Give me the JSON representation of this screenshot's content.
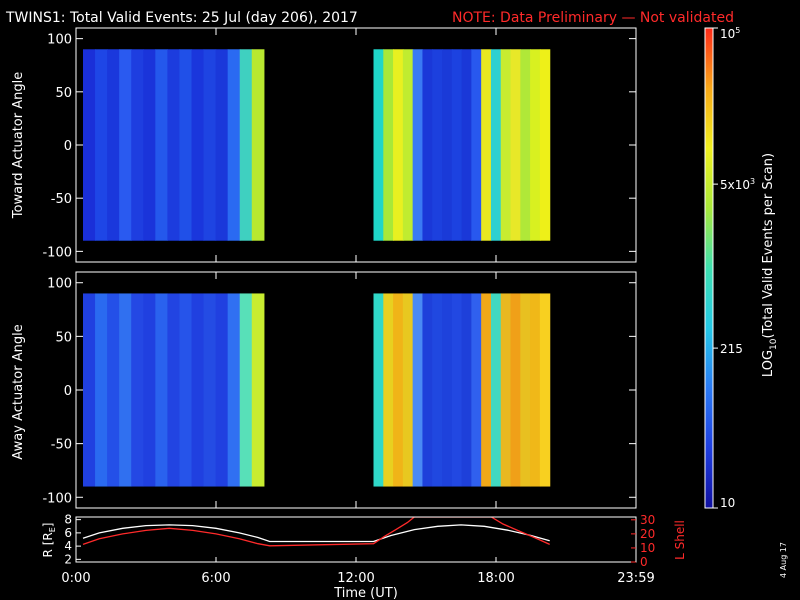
{
  "header": {
    "title": "TWINS1: Total Valid Events: 25 Jul (day 206), 2017",
    "note": "NOTE: Data Preliminary — Not validated"
  },
  "footer": {
    "date": "4 Aug 17"
  },
  "colors": {
    "background": "#000000",
    "note": "#ff2a2a",
    "r_line": "#ffffff",
    "l_shell_line": "#ff2a2a"
  },
  "chart_data": [
    {
      "type": "heatmap",
      "ylabel": "Toward Actuator Angle",
      "ylim": [
        -110,
        110
      ],
      "yticks": [
        100,
        50,
        0,
        -50,
        -100
      ],
      "xlim": [
        0,
        24
      ],
      "data_intervals_hours": [
        [
          0.3,
          8.05
        ],
        [
          12.75,
          20.3
        ]
      ],
      "band_colors_left": [
        "#1a2fd8",
        "#1e46e6",
        "#1a38dc",
        "#2a5af0",
        "#1e3ee0",
        "#1a34da",
        "#2458ec",
        "#1c3cde",
        "#2050e8",
        "#1a36dc",
        "#1e44e2",
        "#1a38da",
        "#2a6af2",
        "#3fd0c0",
        "#b8e830"
      ],
      "band_colors_right": [
        "#1fd6c8",
        "#a8e838",
        "#e8f020",
        "#c0ec30",
        "#3a7af4",
        "#1a38d8",
        "#1c40de",
        "#1a3ad8",
        "#1c42e0",
        "#1a38d8",
        "#2858ee",
        "#e8e820",
        "#2ed0d0",
        "#c8ec30",
        "#e8e828",
        "#b0e838",
        "#d8f020",
        "#eef018"
      ]
    },
    {
      "type": "heatmap",
      "ylabel": "Away Actuator Angle",
      "ylim": [
        -110,
        110
      ],
      "yticks": [
        100,
        50,
        0,
        -50,
        -100
      ],
      "xlim": [
        0,
        24
      ],
      "data_intervals_hours": [
        [
          0.3,
          8.05
        ],
        [
          12.75,
          20.3
        ]
      ],
      "band_colors_left": [
        "#2040e0",
        "#2a6af0",
        "#2450e8",
        "#3070f0",
        "#2448e4",
        "#2040e0",
        "#2a62ee",
        "#2244e2",
        "#2654ea",
        "#2040e0",
        "#244ce4",
        "#2040e0",
        "#3070f2",
        "#58e0b8",
        "#c8ec30"
      ],
      "band_colors_right": [
        "#30d8c8",
        "#e8d020",
        "#f0b418",
        "#e8c820",
        "#4a8af4",
        "#1e40da",
        "#2048e0",
        "#1e42dc",
        "#2248e2",
        "#1e40da",
        "#3060ee",
        "#f0a818",
        "#40d8c0",
        "#e8b820",
        "#f0a018",
        "#e8c020",
        "#f0b818",
        "#f8d020"
      ]
    },
    {
      "type": "line",
      "xlabel": "Time (UT)",
      "x_ticks": [
        "0:00",
        "6:00",
        "12:00",
        "18:00",
        "23:59"
      ],
      "x_tick_hours": [
        0,
        6,
        12,
        18,
        24
      ],
      "xlim": [
        0,
        24
      ],
      "ylabel_left": "R [RE]",
      "ylabel_left_parts": [
        "R [R",
        "E",
        "]"
      ],
      "ylim_left": [
        1.6,
        8.4
      ],
      "yticks_left": [
        8,
        6,
        4,
        2
      ],
      "ylabel_right": "L Shell",
      "ylim_right": [
        0,
        32
      ],
      "yticks_right": [
        30,
        20,
        10,
        0
      ],
      "series": [
        {
          "name": "R",
          "axis": "left",
          "x": [
            0.3,
            1.0,
            2.0,
            3.0,
            4.0,
            5.0,
            6.0,
            7.0,
            7.8,
            8.3,
            12.75,
            13.5,
            14.5,
            15.5,
            16.5,
            17.5,
            18.5,
            19.5,
            20.3
          ],
          "y": [
            5.2,
            6.0,
            6.7,
            7.1,
            7.2,
            7.1,
            6.7,
            6.0,
            5.3,
            4.7,
            4.7,
            5.6,
            6.5,
            7.0,
            7.2,
            7.0,
            6.4,
            5.6,
            4.8
          ]
        },
        {
          "name": "L Shell",
          "axis": "right",
          "x": [
            0.3,
            1.0,
            2.0,
            3.0,
            4.0,
            5.0,
            6.0,
            7.0,
            7.8,
            8.3,
            12.75,
            13.2,
            13.7,
            14.2,
            14.5,
            17.8,
            18.3,
            19.0,
            19.7,
            20.3
          ],
          "y": [
            12.5,
            16.5,
            20.0,
            22.5,
            24.0,
            22.5,
            20.0,
            16.5,
            13.0,
            11.5,
            13.0,
            18.0,
            23.0,
            28.0,
            32.0,
            32.0,
            27.0,
            22.0,
            17.0,
            12.5
          ]
        }
      ]
    }
  ],
  "colorbar": {
    "label": "LOG10(Total Valid Events per Scan)",
    "label_parts": [
      "LOG",
      "10",
      "(Total Valid Events per Scan)"
    ],
    "tick_values": [
      100000,
      5000,
      215,
      10
    ],
    "tick_labels": [
      {
        "value": 100000,
        "main": "10",
        "sup": "5",
        "sub": ""
      },
      {
        "value": 5000,
        "main": "5x10",
        "sup": "3",
        "sub": ""
      },
      {
        "value": 215,
        "main": "215",
        "sup": "",
        "sub": ""
      },
      {
        "value": 10,
        "main": "10",
        "sup": "",
        "sub": ""
      }
    ],
    "scale": "log",
    "range": [
      10,
      100000
    ],
    "stops": [
      "#1010a0",
      "#1f3fe0",
      "#2a7af4",
      "#24c8e6",
      "#3ee0b0",
      "#a8e83a",
      "#f0f020",
      "#f8a818",
      "#ff2a1a"
    ]
  }
}
